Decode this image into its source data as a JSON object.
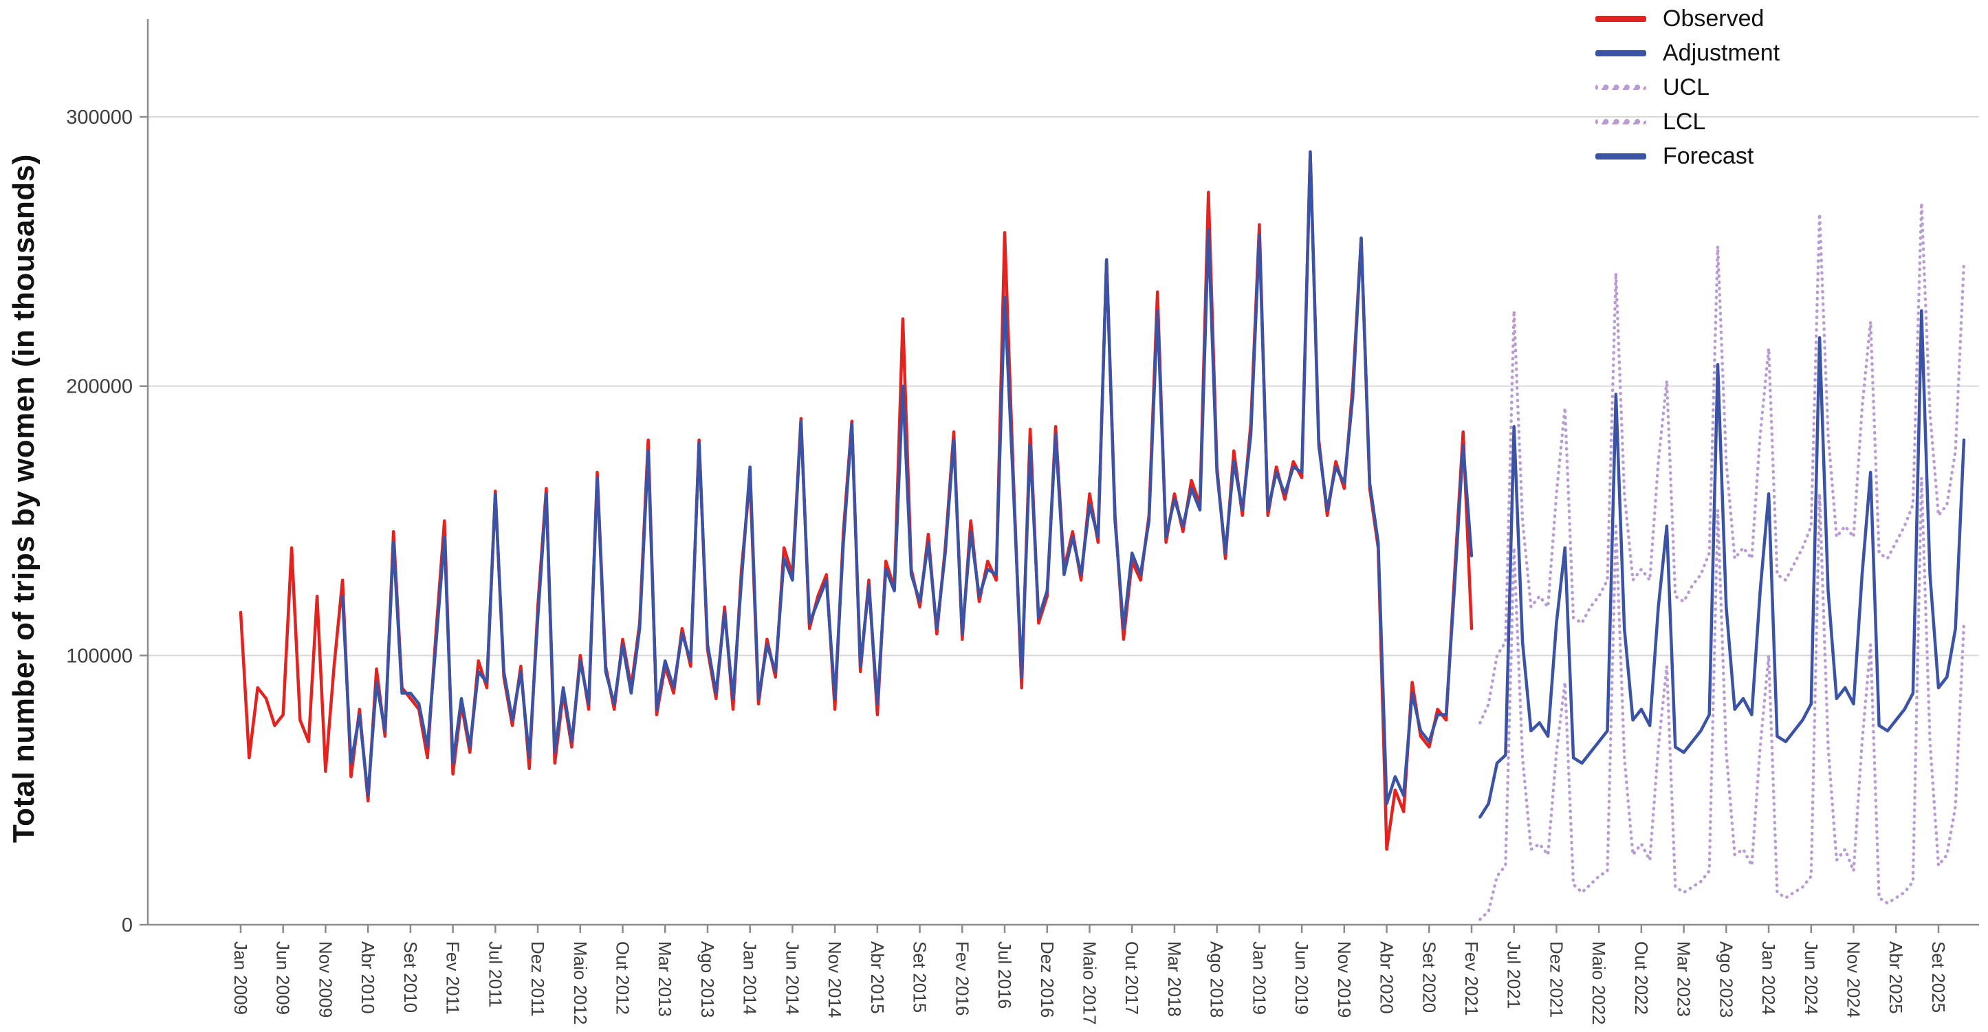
{
  "figure": {
    "background_color": "#ffffff",
    "gridline_color": "#d9d9d9",
    "axis_color": "#8c8c8c",
    "tick_label_color": "#3d3d3d"
  },
  "chart_data": {
    "type": "line",
    "title": "",
    "xlabel": "",
    "ylabel": "Total number of trips by women (in thousands)",
    "grid": true,
    "legend_position": "top-right",
    "total_months": 204,
    "x_axis": {
      "start": "Jan 2009",
      "end": "Dez 2025",
      "frequency": "monthly",
      "tick_step_months": 5,
      "tick_labels": [
        "Jan 2009",
        "Jun 2009",
        "Nov 2009",
        "Abr 2010",
        "Set 2010",
        "Fev 2011",
        "Jul 2011",
        "Dez 2011",
        "Maio 2012",
        "Out 2012",
        "Mar 2013",
        "Ago 2013",
        "Jan 2014",
        "Jun 2014",
        "Nov 2014",
        "Abr 2015",
        "Set 2015",
        "Fev 2016",
        "Jul 2016",
        "Dez 2016",
        "Maio 2017",
        "Out 2017",
        "Mar 2018",
        "Ago 2018",
        "Jan 2019",
        "Jun 2019",
        "Nov 2019",
        "Abr 2020",
        "Set 2020",
        "Fev 2021",
        "Jul 2021",
        "Dez 2021",
        "Maio 2022",
        "Out 2022",
        "Mar 2023",
        "Ago 2023",
        "Jan 2024",
        "Jun 2024",
        "Nov 2024",
        "Abr 2025",
        "Set 2025"
      ]
    },
    "y_axis": {
      "ticks": [
        0,
        100000,
        200000,
        300000
      ],
      "tick_labels": [
        "0",
        "100000",
        "200000",
        "300000"
      ],
      "range": [
        0,
        335000
      ]
    },
    "series": [
      {
        "name": "Observed",
        "color": "#e2231f",
        "style": "solid",
        "start_index": 0,
        "start_month": "Jan 2009",
        "end_month": "Fev 2021",
        "values": [
          116000,
          62000,
          88000,
          84000,
          74000,
          78000,
          140000,
          76000,
          68000,
          122000,
          57000,
          96000,
          128000,
          55000,
          80000,
          46000,
          95000,
          70000,
          146000,
          88000,
          84000,
          80000,
          62000,
          108000,
          150000,
          56000,
          82000,
          64000,
          98000,
          88000,
          161000,
          92000,
          74000,
          96000,
          58000,
          118000,
          162000,
          60000,
          86000,
          66000,
          100000,
          80000,
          168000,
          96000,
          80000,
          106000,
          88000,
          112000,
          180000,
          78000,
          96000,
          86000,
          110000,
          96000,
          180000,
          102000,
          84000,
          118000,
          80000,
          132000,
          166000,
          82000,
          106000,
          92000,
          140000,
          130000,
          188000,
          110000,
          122000,
          130000,
          80000,
          146000,
          187000,
          94000,
          128000,
          78000,
          135000,
          125000,
          225000,
          132000,
          118000,
          145000,
          108000,
          140000,
          183000,
          106000,
          150000,
          120000,
          135000,
          128000,
          257000,
          168000,
          88000,
          184000,
          112000,
          122000,
          185000,
          132000,
          146000,
          128000,
          160000,
          142000,
          247000,
          152000,
          106000,
          135000,
          128000,
          152000,
          235000,
          142000,
          160000,
          146000,
          165000,
          156000,
          272000,
          170000,
          136000,
          176000,
          152000,
          186000,
          260000,
          152000,
          170000,
          158000,
          172000,
          166000,
          287000,
          180000,
          152000,
          172000,
          162000,
          200000,
          255000,
          162000,
          140000,
          28000,
          50000,
          42000,
          90000,
          70000,
          66000,
          80000,
          76000,
          130000,
          183000,
          110000
        ]
      },
      {
        "name": "Adjustment",
        "color": "#3a53a4",
        "style": "solid",
        "start_index": 12,
        "start_month": "Jan 2010",
        "end_month": "Fev 2021",
        "values": [
          122000,
          60000,
          78000,
          48000,
          90000,
          72000,
          142000,
          86000,
          86000,
          82000,
          66000,
          104000,
          144000,
          60000,
          84000,
          66000,
          94000,
          90000,
          160000,
          94000,
          76000,
          94000,
          62000,
          114000,
          160000,
          64000,
          88000,
          68000,
          98000,
          82000,
          166000,
          94000,
          82000,
          104000,
          86000,
          110000,
          176000,
          80000,
          98000,
          88000,
          108000,
          98000,
          179000,
          104000,
          86000,
          116000,
          84000,
          128000,
          170000,
          84000,
          104000,
          94000,
          136000,
          128000,
          187000,
          112000,
          120000,
          128000,
          84000,
          142000,
          186000,
          96000,
          126000,
          82000,
          132000,
          124000,
          200000,
          130000,
          120000,
          142000,
          110000,
          138000,
          180000,
          108000,
          146000,
          122000,
          132000,
          130000,
          233000,
          164000,
          92000,
          178000,
          114000,
          124000,
          182000,
          130000,
          144000,
          130000,
          156000,
          144000,
          247000,
          150000,
          110000,
          138000,
          130000,
          150000,
          228000,
          144000,
          158000,
          148000,
          162000,
          154000,
          258000,
          168000,
          138000,
          172000,
          154000,
          182000,
          256000,
          154000,
          168000,
          160000,
          170000,
          168000,
          287000,
          178000,
          154000,
          170000,
          164000,
          196000,
          255000,
          164000,
          142000,
          45000,
          55000,
          48000,
          86000,
          72000,
          68000,
          78000,
          78000,
          126000,
          178000,
          137000
        ]
      },
      {
        "name": "UCL",
        "color": "#b79bd2",
        "style": "dotted",
        "start_index": 146,
        "start_month": "Mar 2021",
        "end_month": "Dez 2025",
        "values": [
          75000,
          82000,
          100000,
          105000,
          228000,
          150000,
          118000,
          122000,
          118000,
          160000,
          192000,
          114000,
          112000,
          118000,
          122000,
          128000,
          242000,
          160000,
          128000,
          132000,
          128000,
          172000,
          202000,
          122000,
          120000,
          126000,
          130000,
          138000,
          252000,
          172000,
          136000,
          140000,
          136000,
          182000,
          214000,
          130000,
          128000,
          134000,
          140000,
          148000,
          264000,
          182000,
          144000,
          148000,
          144000,
          192000,
          224000,
          138000,
          136000,
          142000,
          148000,
          156000,
          268000,
          190000,
          152000,
          156000,
          176000,
          246000
        ]
      },
      {
        "name": "LCL",
        "color": "#b79bd2",
        "style": "dotted",
        "start_index": 146,
        "start_month": "Mar 2021",
        "end_month": "Dez 2025",
        "values": [
          2000,
          5000,
          18000,
          22000,
          140000,
          62000,
          28000,
          30000,
          26000,
          64000,
          90000,
          15000,
          12000,
          15000,
          18000,
          20000,
          148000,
          62000,
          26000,
          30000,
          24000,
          66000,
          96000,
          14000,
          12000,
          14000,
          16000,
          20000,
          154000,
          64000,
          26000,
          28000,
          22000,
          66000,
          100000,
          12000,
          10000,
          12000,
          14000,
          18000,
          160000,
          66000,
          24000,
          28000,
          20000,
          68000,
          104000,
          10000,
          8000,
          10000,
          12000,
          16000,
          166000,
          68000,
          22000,
          26000,
          44000,
          112000
        ]
      },
      {
        "name": "Forecast",
        "color": "#3a53a4",
        "style": "solid",
        "start_index": 146,
        "start_month": "Mar 2021",
        "end_month": "Dez 2025",
        "values": [
          40000,
          45000,
          60000,
          63000,
          185000,
          105000,
          72000,
          75000,
          70000,
          112000,
          140000,
          62000,
          60000,
          64000,
          68000,
          72000,
          197000,
          110000,
          76000,
          80000,
          74000,
          118000,
          148000,
          66000,
          64000,
          68000,
          72000,
          78000,
          208000,
          118000,
          80000,
          84000,
          78000,
          124000,
          160000,
          70000,
          68000,
          72000,
          76000,
          82000,
          218000,
          124000,
          84000,
          88000,
          82000,
          130000,
          168000,
          74000,
          72000,
          76000,
          80000,
          86000,
          228000,
          130000,
          88000,
          92000,
          110000,
          180000
        ]
      }
    ]
  }
}
